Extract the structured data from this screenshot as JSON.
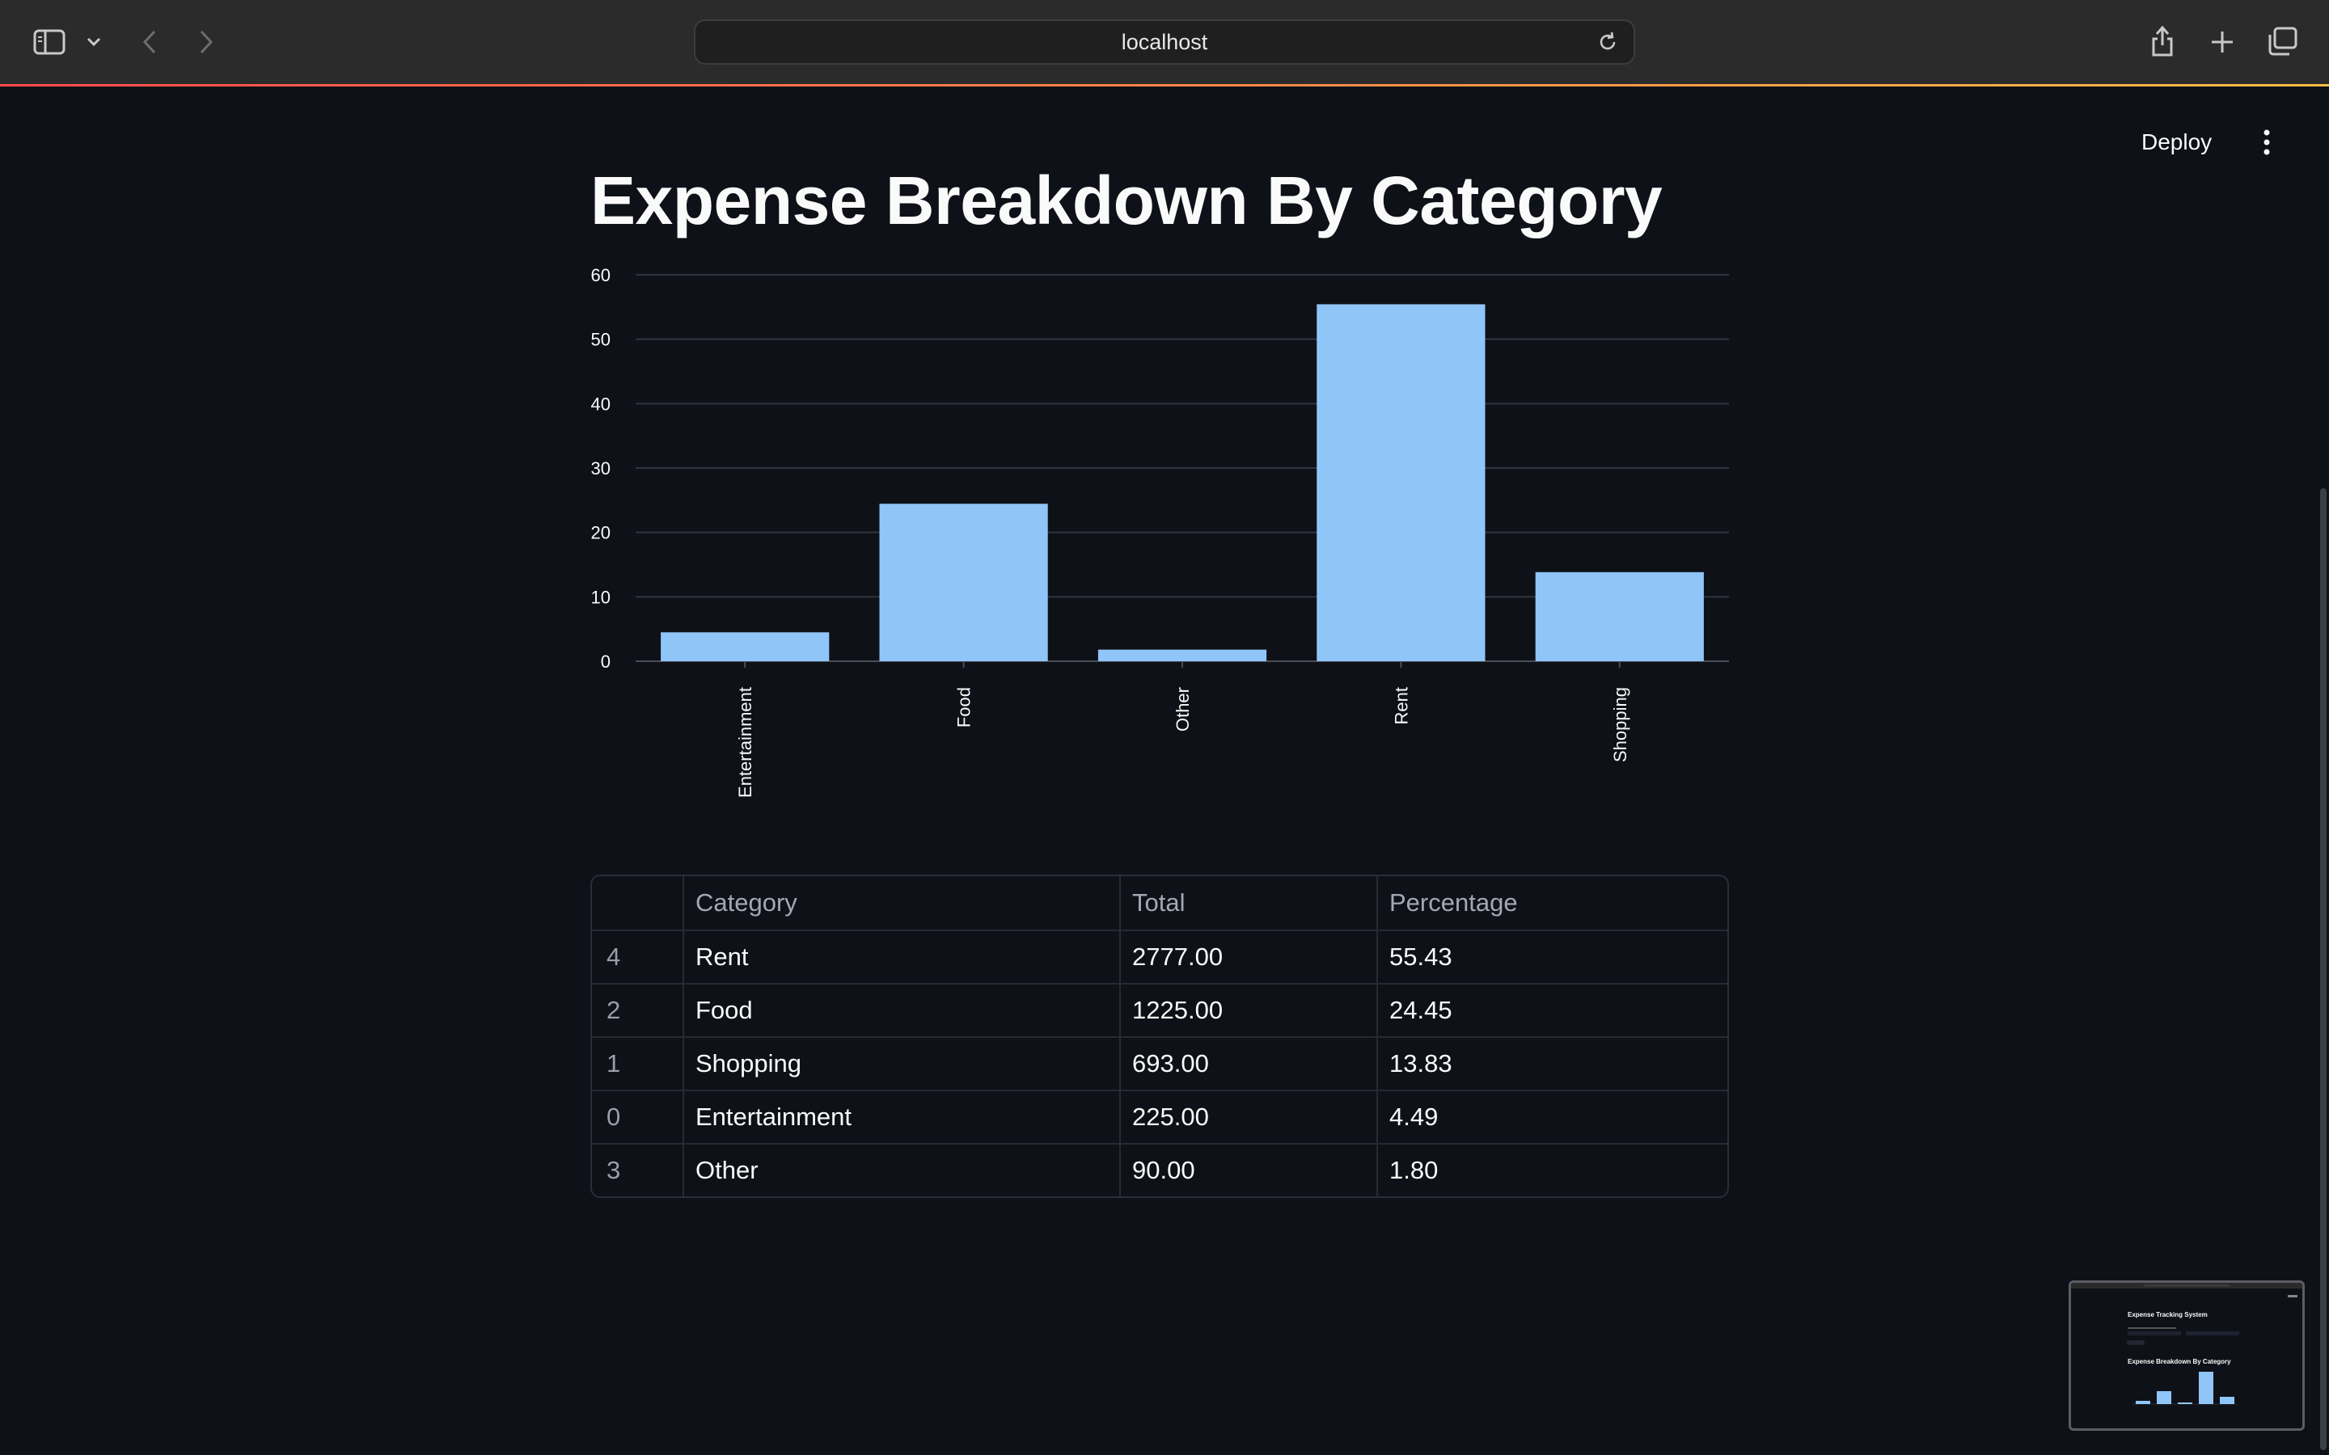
{
  "browser": {
    "address": "localhost"
  },
  "header": {
    "deploy_label": "Deploy"
  },
  "main": {
    "title": "Expense Breakdown By Category"
  },
  "chart_data": {
    "type": "bar",
    "categories": [
      "Entertainment",
      "Food",
      "Other",
      "Rent",
      "Shopping"
    ],
    "values": [
      4.49,
      24.45,
      1.8,
      55.43,
      13.83
    ],
    "ylim": [
      0,
      60
    ],
    "yticks": [
      0,
      10,
      20,
      30,
      40,
      50,
      60
    ],
    "grid": true,
    "color": "#90c5f8"
  },
  "table": {
    "columns": [
      "",
      "Category",
      "Total",
      "Percentage"
    ],
    "rows": [
      [
        "4",
        "Rent",
        "2777.00",
        "55.43"
      ],
      [
        "2",
        "Food",
        "1225.00",
        "24.45"
      ],
      [
        "1",
        "Shopping",
        "693.00",
        "13.83"
      ],
      [
        "0",
        "Entertainment",
        "225.00",
        "4.49"
      ],
      [
        "3",
        "Other",
        "90.00",
        "1.80"
      ]
    ]
  },
  "minimap": {
    "heading_1": "Expense Tracking System",
    "heading_2": "Expense Breakdown By Category"
  }
}
